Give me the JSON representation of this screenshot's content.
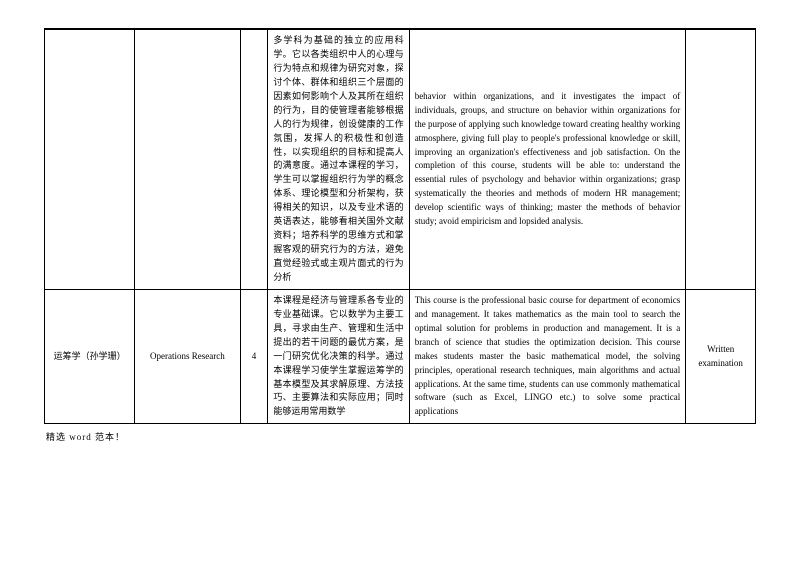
{
  "table": {
    "row0": {
      "col1": "",
      "col2": "",
      "col3": "",
      "col4": "多学科为基础的独立的应用科学。它以各类组织中人的心理与行为特点和规律为研究对象，探讨个体、群体和组织三个层面的因素如何影响个人及其所在组织的行为，目的使管理者能够根据人的行为规律，创设健康的工作氛围，发挥人的积极性和创造性，以实现组织的目标和提高人的满意度。通过本课程的学习，学生可以掌握组织行为学的概念体系、理论模型和分析架构，获得相关的知识，以及专业术语的英语表达，能够看相关国外文献资料；培养科学的思维方式和掌握客观的研究行为的方法，避免直觉经验式或主观片面式的行为分析",
      "col5": "behavior within organizations, and it investigates the impact of individuals, groups, and structure on behavior within organizations for the purpose of applying such knowledge toward creating healthy working atmosphere, giving full play to people's professional knowledge or skill, improving an organization's effectiveness and job satisfaction. On the completion of this course, students will be able to: understand the essential rules of psychology and behavior within organizations; grasp systematically the theories and methods of modern HR management; develop scientific ways of thinking; master the methods of behavior study; avoid empiricism and lopsided analysis.",
      "col6": ""
    },
    "row1": {
      "col1": "运筹学（孙学珊）",
      "col2": "Operations Research",
      "col3": "4",
      "col4": "本课程是经济与管理系各专业的专业基础课。它以数学为主要工具，寻求由生产、管理和生活中提出的若干问题的最优方案，是一门研究优化决策的科学。通过本课程学习使学生掌握运筹学的基本模型及其求解原理、方法技巧、主要算法和实际应用；同时能够运用常用数学",
      "col5": "This course is the professional basic course for department of economics and management. It takes mathematics as the main tool to search the optimal solution for problems in production and management. It is a branch of science that studies the optimization decision. This course makes students master the basic mathematical model, the solving principles, operational research techniques, main algorithms and actual applications. At the same time, students can use commonly mathematical software (such as Excel, LINGO etc.) to solve some practical applications",
      "col6": "Written examination"
    }
  },
  "footer": "精选 word 范本！"
}
